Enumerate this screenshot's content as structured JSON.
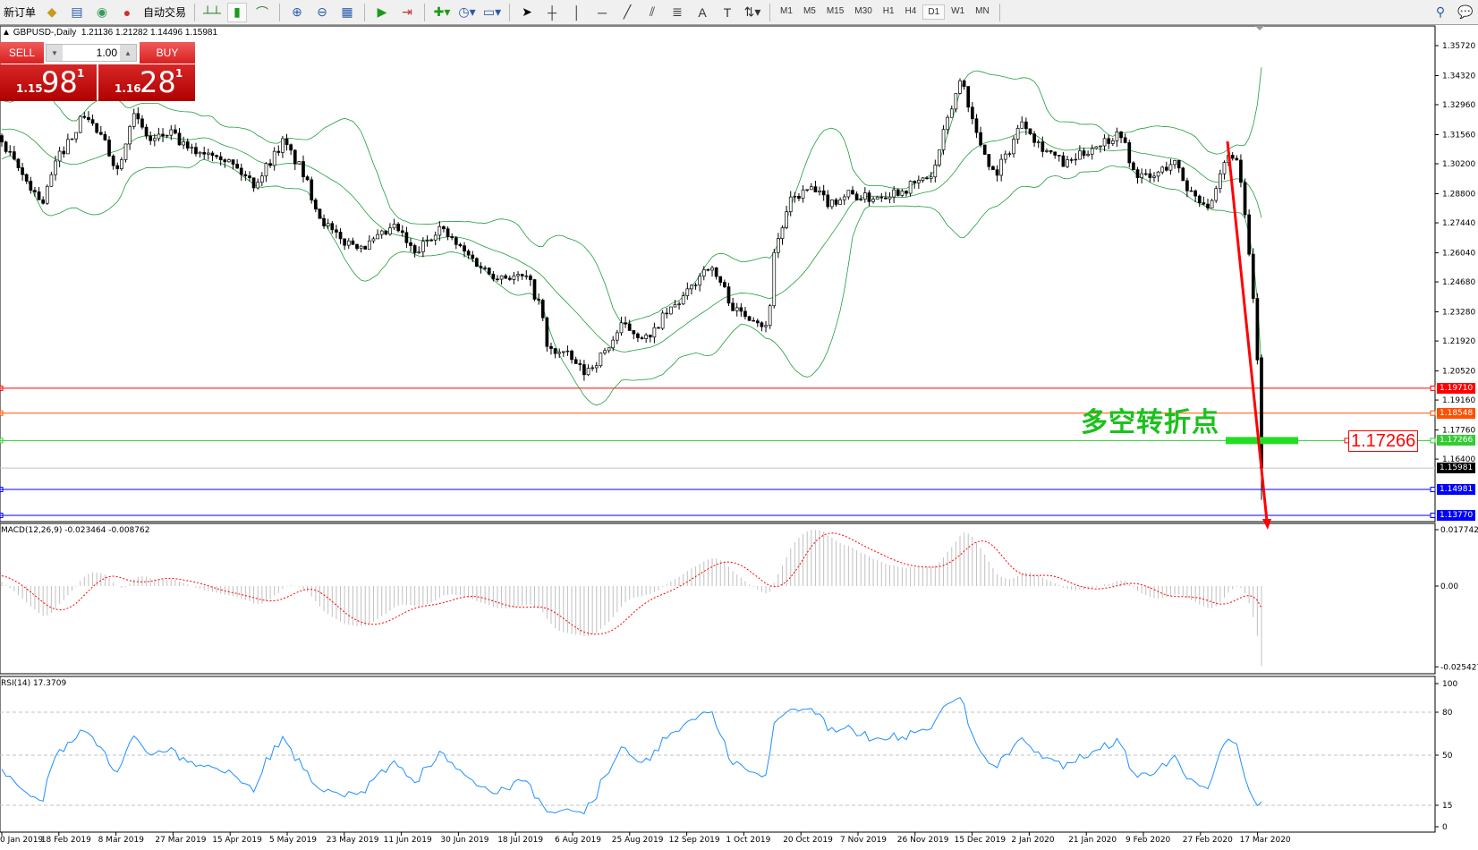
{
  "toolbar": {
    "new_order": "新订单",
    "auto_trading": "自动交易",
    "timeframes": [
      "M1",
      "M5",
      "M15",
      "M30",
      "H1",
      "H4",
      "D1",
      "W1",
      "MN"
    ],
    "active_timeframe": "D1",
    "icons": [
      "market-watch-icon",
      "navigator-icon",
      "signals-icon",
      "bar-chart-icon",
      "candlestick-icon",
      "line-chart-icon",
      "zoom-in-icon",
      "zoom-out-icon",
      "tile-windows-icon",
      "auto-scroll-icon",
      "chart-shift-icon",
      "indicators-icon",
      "periods-icon",
      "templates-icon",
      "cursor-icon",
      "crosshair-icon",
      "vertical-line-icon",
      "horizontal-line-icon",
      "trendline-icon",
      "equidistant-channel-icon",
      "fibonacci-icon",
      "text-icon",
      "text-label-icon",
      "arrows-icon",
      "search-icon",
      "chat-icon"
    ]
  },
  "chart": {
    "symbol_line": "GBPUSD-,Daily",
    "ohlc": {
      "open": "1.21136",
      "high": "1.21282",
      "low": "1.14496",
      "close": "1.15981"
    },
    "price_axis": [
      "1.35720",
      "1.34320",
      "1.32960",
      "1.31560",
      "1.30200",
      "1.28800",
      "1.27440",
      "1.26040",
      "1.24680",
      "1.23280",
      "1.21920",
      "1.20520",
      "1.19160",
      "1.17760",
      "1.16400"
    ],
    "levels": [
      {
        "price": "1.19710",
        "color": "#ff0000",
        "text_color": "#ffffff"
      },
      {
        "price": "1.18548",
        "color": "#ff5000",
        "text_color": "#ffffff"
      },
      {
        "price": "1.17266",
        "color": "#32cd32",
        "text_color": "#ffffff"
      },
      {
        "price": "1.15981",
        "color": "#000000",
        "text_color": "#ffffff",
        "line": "#c0c0c0"
      },
      {
        "price": "1.14981",
        "color": "#0000ff",
        "text_color": "#ffffff"
      },
      {
        "price": "1.13770",
        "color": "#0000ff",
        "text_color": "#ffffff"
      }
    ],
    "annotation_text": "多空转折点",
    "annotation_price_label": "1.17266",
    "colors": {
      "bands": "#1e9e3c",
      "arrow": "#ff0000",
      "pivot_bar": "#22dd22",
      "rsi": "#1e90ff",
      "macd_hist": "#c0c0c0",
      "macd_signal": "#ff0000"
    }
  },
  "one_click": {
    "sell_label": "SELL",
    "buy_label": "BUY",
    "lot": "1.00",
    "sell_price": {
      "prefix": "1.15",
      "big": "98",
      "sup": "1"
    },
    "buy_price": {
      "prefix": "1.16",
      "big": "28",
      "sup": "1"
    }
  },
  "macd": {
    "title": "MACD(12,26,9) -0.023464 -0.008762",
    "axis": [
      "0.017742",
      "0.00",
      "-0.025427"
    ]
  },
  "rsi": {
    "title": "RSI(14) 17.3709",
    "axis": [
      "100",
      "80",
      "50",
      "15",
      "0"
    ]
  },
  "dates": [
    "0 Jan 2019",
    "18 Feb 2019",
    "8 Mar 2019",
    "27 Mar 2019",
    "15 Apr 2019",
    "5 May 2019",
    "23 May 2019",
    "11 Jun 2019",
    "30 Jun 2019",
    "18 Jul 2019",
    "6 Aug 2019",
    "25 Aug 2019",
    "12 Sep 2019",
    "1 Oct 2019",
    "20 Oct 2019",
    "7 Nov 2019",
    "26 Nov 2019",
    "15 Dec 2019",
    "2 Jan 2020",
    "21 Jan 2020",
    "9 Feb 2020",
    "27 Feb 2020",
    "17 Mar 2020"
  ]
}
